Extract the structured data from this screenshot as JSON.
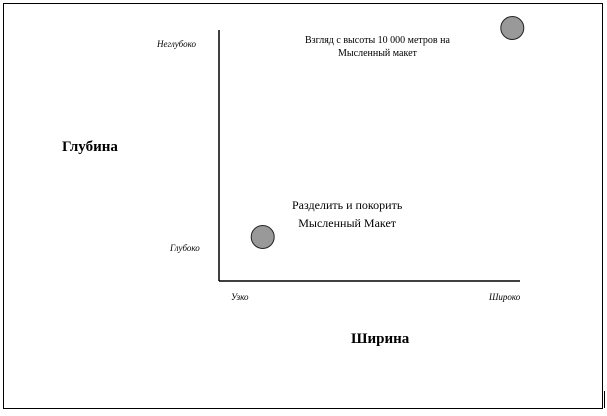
{
  "chart_data": {
    "type": "scatter",
    "title": "",
    "xlabel": "Ширина",
    "ylabel": "Глубина",
    "x_tick_labels": [
      "Узко",
      "Широко"
    ],
    "y_tick_labels": [
      "Неглубоко",
      "Глубоко"
    ],
    "xlim": [
      0,
      1
    ],
    "ylim": [
      0,
      1
    ],
    "grid": false,
    "points": [
      {
        "x": 0.14,
        "y": 0.16,
        "label_lines": [
          "Разделить и покорить",
          "Мысленный Макет"
        ]
      },
      {
        "x": 0.94,
        "y": 0.92,
        "label_lines": [
          "Взгляд с высоты 10 000 метров на",
          "Мысленный макет"
        ]
      }
    ],
    "colors": {
      "point_fill": "#999999",
      "point_stroke": "#222222",
      "axis": "#000000"
    }
  }
}
